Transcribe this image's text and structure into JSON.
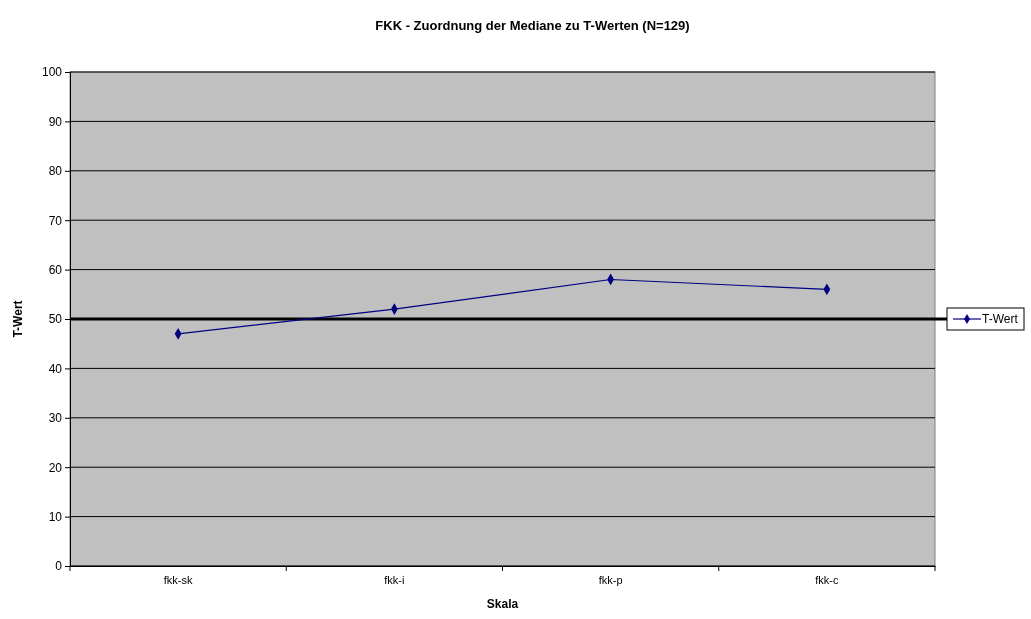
{
  "chart_data": {
    "type": "line",
    "title": "FKK - Zuordnung der Mediane zu T-Werten (N=129)",
    "xlabel": "Skala",
    "ylabel": "T-Wert",
    "categories": [
      "fkk-sk",
      "fkk-i",
      "fkk-p",
      "fkk-c"
    ],
    "series": [
      {
        "name": "T-Wert",
        "color": "#000080",
        "values": [
          47,
          52,
          58,
          56
        ]
      }
    ],
    "ylim": [
      0,
      100
    ],
    "yticks": [
      0,
      10,
      20,
      30,
      40,
      50,
      60,
      70,
      80,
      90,
      100
    ],
    "grid": "y",
    "legend": "right",
    "marker": "diamond",
    "line_style": "solid",
    "ref_lines": [
      {
        "axis": "y",
        "value": 50,
        "color": "#000000"
      }
    ]
  }
}
